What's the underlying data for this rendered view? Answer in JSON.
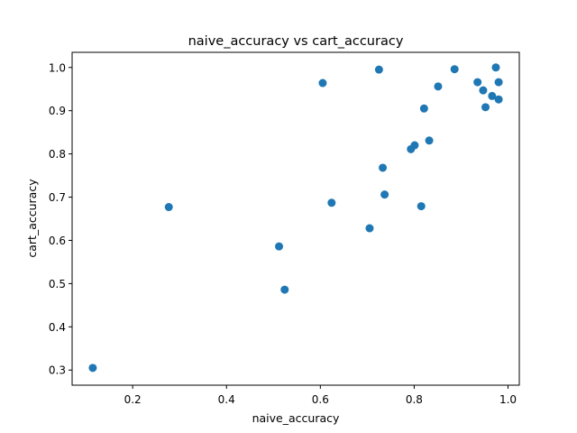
{
  "chart_data": {
    "type": "scatter",
    "title": "naive_accuracy vs cart_accuracy",
    "xlabel": "naive_accuracy",
    "ylabel": "cart_accuracy",
    "xlim": [
      0.071,
      1.024
    ],
    "ylim": [
      0.265,
      1.035
    ],
    "xticks": [
      0.2,
      0.4,
      0.6,
      0.8,
      1.0
    ],
    "xtick_labels": [
      "0.2",
      "0.4",
      "0.6",
      "0.8",
      "1.0"
    ],
    "yticks": [
      0.3,
      0.4,
      0.5,
      0.6,
      0.7,
      0.8,
      0.9,
      1.0
    ],
    "ytick_labels": [
      "0.3",
      "0.4",
      "0.5",
      "0.6",
      "0.7",
      "0.8",
      "0.9",
      "1.0"
    ],
    "grid": false,
    "marker_color": "#1f77b4",
    "points": [
      {
        "x": 0.115,
        "y": 0.305
      },
      {
        "x": 0.277,
        "y": 0.677
      },
      {
        "x": 0.512,
        "y": 0.586
      },
      {
        "x": 0.524,
        "y": 0.486
      },
      {
        "x": 0.605,
        "y": 0.964
      },
      {
        "x": 0.624,
        "y": 0.687
      },
      {
        "x": 0.705,
        "y": 0.628
      },
      {
        "x": 0.725,
        "y": 0.995
      },
      {
        "x": 0.733,
        "y": 0.768
      },
      {
        "x": 0.737,
        "y": 0.706
      },
      {
        "x": 0.793,
        "y": 0.811
      },
      {
        "x": 0.801,
        "y": 0.82
      },
      {
        "x": 0.815,
        "y": 0.679
      },
      {
        "x": 0.821,
        "y": 0.905
      },
      {
        "x": 0.832,
        "y": 0.831
      },
      {
        "x": 0.851,
        "y": 0.956
      },
      {
        "x": 0.886,
        "y": 0.996
      },
      {
        "x": 0.935,
        "y": 0.966
      },
      {
        "x": 0.947,
        "y": 0.947
      },
      {
        "x": 0.952,
        "y": 0.908
      },
      {
        "x": 0.966,
        "y": 0.934
      },
      {
        "x": 0.974,
        "y": 1.0
      },
      {
        "x": 0.98,
        "y": 0.966
      },
      {
        "x": 0.98,
        "y": 0.926
      }
    ]
  }
}
